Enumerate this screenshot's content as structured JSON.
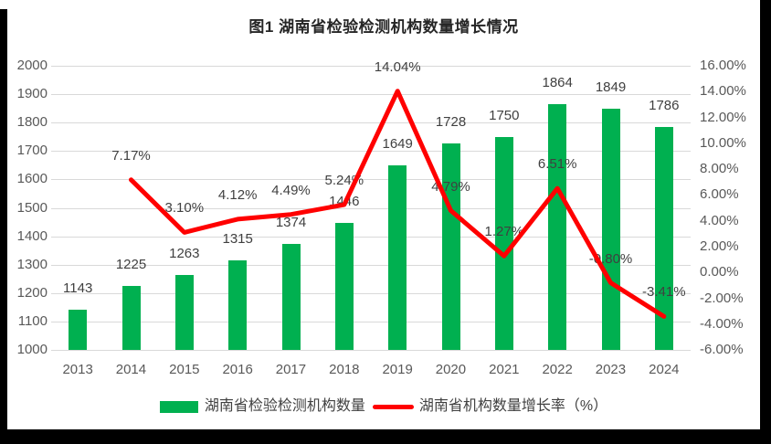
{
  "title": "图1 湖南省检验检测机构数量增长情况",
  "legend": {
    "bar_label": "湖南省检验检测机构数量",
    "line_label": "湖南省机构数量增长率（%）"
  },
  "colors": {
    "bar": "#00B050",
    "line": "#FF0000",
    "grid": "#D9D9D9",
    "tick_text": "#595959",
    "data_label_text": "#404040",
    "title_text": "#262626",
    "frame": "#000000",
    "sheet": "#FFFFFF"
  },
  "chart_data": {
    "type": "combo",
    "title": "图1 湖南省检验检测机构数量增长情况",
    "categories": [
      "2013",
      "2014",
      "2015",
      "2016",
      "2017",
      "2018",
      "2019",
      "2020",
      "2021",
      "2022",
      "2023",
      "2024"
    ],
    "series": [
      {
        "name": "湖南省检验检测机构数量",
        "type": "bar",
        "axis": "left",
        "values": [
          1143,
          1225,
          1263,
          1315,
          1374,
          1446,
          1649,
          1728,
          1750,
          1864,
          1849,
          1786
        ],
        "point_labels": [
          "1143",
          "1225",
          "1263",
          "1315",
          "1374",
          "1446",
          "1649",
          "1728",
          "1750",
          "1864",
          "1849",
          "1786"
        ]
      },
      {
        "name": "湖南省机构数量增长率（%）",
        "type": "line",
        "axis": "right",
        "values": [
          null,
          7.17,
          3.1,
          4.12,
          4.49,
          5.24,
          14.04,
          4.79,
          1.27,
          6.51,
          -0.8,
          -3.41
        ],
        "point_labels": [
          "",
          "7.17%",
          "3.10%",
          "4.12%",
          "4.49%",
          "5.24%",
          "14.04%",
          "4.79%",
          "1.27%",
          "6.51%",
          "-0.80%",
          "-3.41%"
        ]
      }
    ],
    "left_axis": {
      "min": 1000,
      "max": 2000,
      "step": 100,
      "tick_labels": [
        "2000",
        "1900",
        "1800",
        "1700",
        "1600",
        "1500",
        "1400",
        "1300",
        "1200",
        "1100",
        "1000"
      ]
    },
    "right_axis": {
      "min": -6,
      "max": 16,
      "step": 2,
      "tick_labels": [
        "16.00%",
        "14.00%",
        "12.00%",
        "10.00%",
        "8.00%",
        "6.00%",
        "4.00%",
        "2.00%",
        "0.00%",
        "-2.00%",
        "-4.00%",
        "-6.00%"
      ]
    },
    "grid": true,
    "legend_position": "bottom"
  }
}
